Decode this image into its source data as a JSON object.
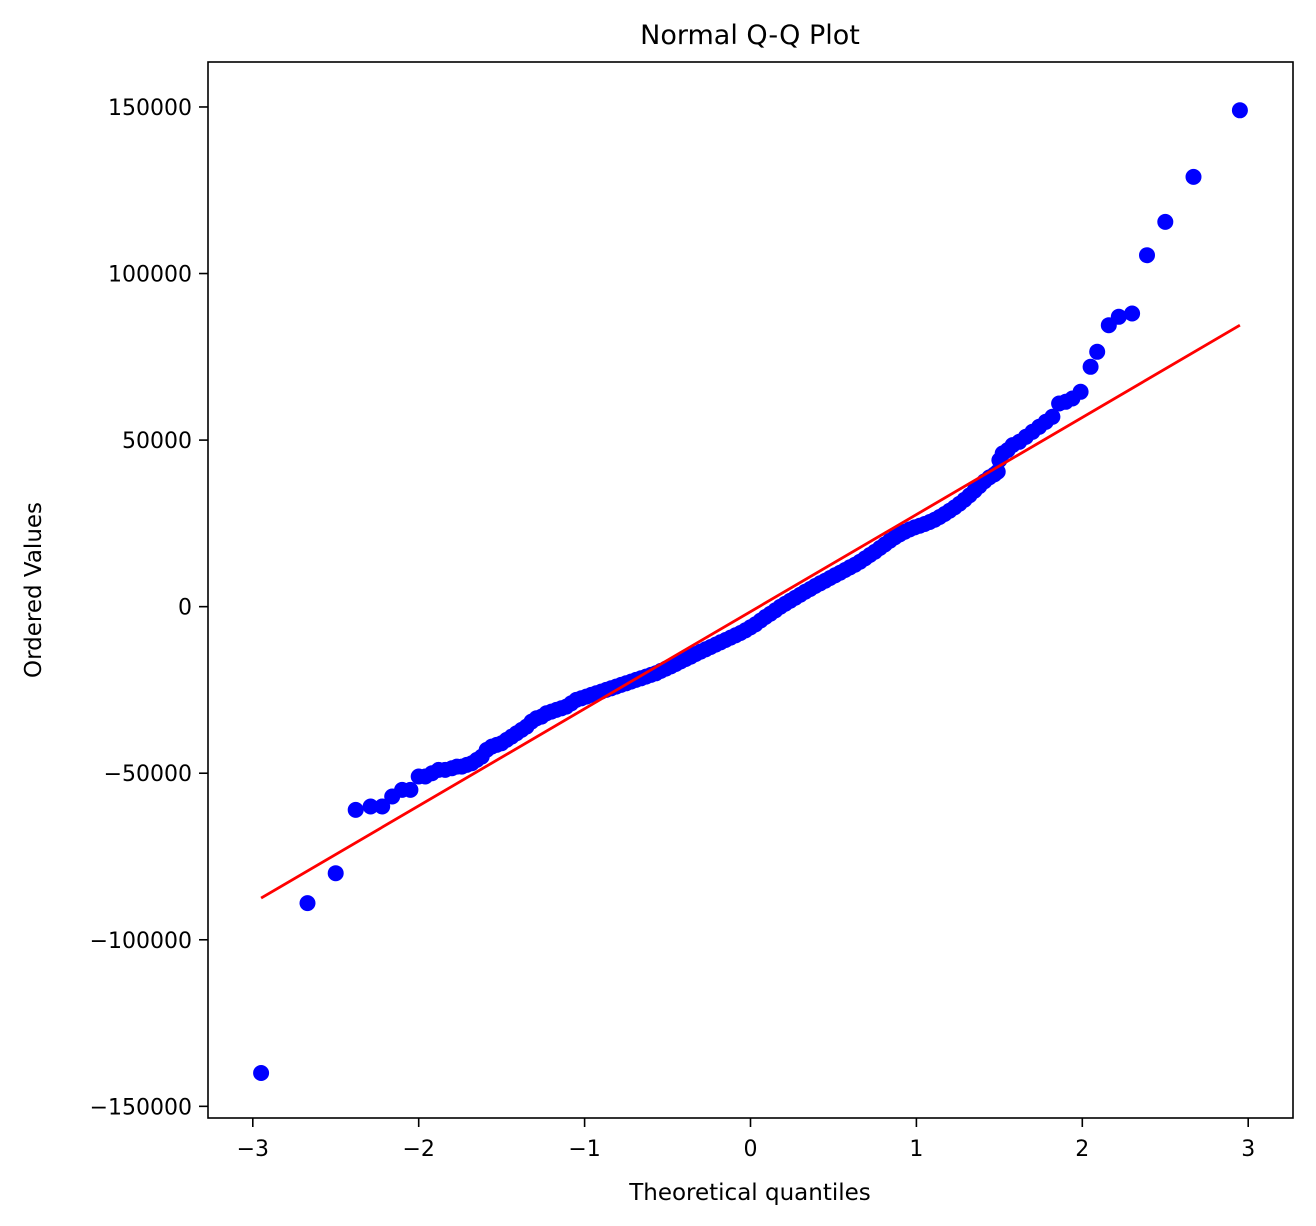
{
  "chart_data": {
    "type": "scatter",
    "title": "Normal Q-Q Plot",
    "xlabel": "Theoretical quantiles",
    "ylabel": "Ordered Values",
    "xlim": [
      -3.27,
      3.27
    ],
    "ylim": [
      -153500,
      163500
    ],
    "xticks": [
      {
        "value": -3,
        "label": "−3"
      },
      {
        "value": -2,
        "label": "−2"
      },
      {
        "value": -1,
        "label": "−1"
      },
      {
        "value": 0,
        "label": "0"
      },
      {
        "value": 1,
        "label": "1"
      },
      {
        "value": 2,
        "label": "2"
      },
      {
        "value": 3,
        "label": "3"
      }
    ],
    "yticks": [
      {
        "value": -150000,
        "label": "−150000"
      },
      {
        "value": -100000,
        "label": "−100000"
      },
      {
        "value": -50000,
        "label": "−50000"
      },
      {
        "value": 0,
        "label": "0"
      },
      {
        "value": 50000,
        "label": "50000"
      },
      {
        "value": 100000,
        "label": "100000"
      },
      {
        "value": 150000,
        "label": "150000"
      }
    ],
    "grid": false,
    "marker_color": "#0000ff",
    "fit_line_color": "#ff0000",
    "series": [
      {
        "kind": "points",
        "points": [
          [
            -2.95,
            -140000
          ],
          [
            -2.67,
            -89000
          ],
          [
            -2.5,
            -80000
          ],
          [
            -2.38,
            -61000
          ],
          [
            -2.29,
            -60000
          ],
          [
            -2.22,
            -60000
          ],
          [
            -2.16,
            -57000
          ],
          [
            -2.1,
            -55000
          ],
          [
            -2.05,
            -55000
          ],
          [
            -2.0,
            -51000
          ],
          [
            -1.96,
            -51000
          ],
          [
            -1.92,
            -50000
          ],
          [
            -1.88,
            -49000
          ],
          [
            -1.84,
            -49000
          ],
          [
            -1.8,
            -48500
          ],
          [
            -1.77,
            -48000
          ],
          [
            -1.74,
            -48000
          ],
          [
            -1.71,
            -47500
          ],
          [
            -1.68,
            -47000
          ],
          [
            -1.65,
            -46000
          ],
          [
            -1.62,
            -45000
          ],
          [
            -1.59,
            -43000
          ],
          [
            -1.56,
            -42000
          ],
          [
            -1.53,
            -41500
          ],
          [
            -1.5,
            -41000
          ],
          [
            -1.47,
            -40000
          ],
          [
            -1.44,
            -39000
          ],
          [
            -1.41,
            -38000
          ],
          [
            -1.38,
            -37000
          ],
          [
            -1.35,
            -36000
          ],
          [
            -1.32,
            -34500
          ],
          [
            -1.29,
            -33500
          ],
          [
            -1.26,
            -33000
          ],
          [
            -1.23,
            -32000
          ],
          [
            -1.2,
            -31500
          ],
          [
            -1.17,
            -31000
          ],
          [
            -1.14,
            -30500
          ],
          [
            -1.11,
            -30000
          ],
          [
            -1.08,
            -29000
          ],
          [
            -1.05,
            -28000
          ],
          [
            -1.02,
            -27500
          ],
          [
            -0.99,
            -27000
          ],
          [
            -0.96,
            -26500
          ],
          [
            -0.93,
            -26000
          ],
          [
            -0.9,
            -25500
          ],
          [
            -0.87,
            -25000
          ],
          [
            -0.84,
            -24500
          ],
          [
            -0.81,
            -24000
          ],
          [
            -0.78,
            -23500
          ],
          [
            -0.75,
            -23000
          ],
          [
            -0.72,
            -22500
          ],
          [
            -0.69,
            -22000
          ],
          [
            -0.66,
            -21500
          ],
          [
            -0.63,
            -21000
          ],
          [
            -0.6,
            -20500
          ],
          [
            -0.57,
            -20000
          ],
          [
            -0.54,
            -19300
          ],
          [
            -0.51,
            -18600
          ],
          [
            -0.48,
            -17900
          ],
          [
            -0.45,
            -17200
          ],
          [
            -0.42,
            -16400
          ],
          [
            -0.39,
            -15700
          ],
          [
            -0.36,
            -15000
          ],
          [
            -0.33,
            -14200
          ],
          [
            -0.3,
            -13500
          ],
          [
            -0.27,
            -12800
          ],
          [
            -0.24,
            -12100
          ],
          [
            -0.21,
            -11400
          ],
          [
            -0.18,
            -10700
          ],
          [
            -0.15,
            -10000
          ],
          [
            -0.12,
            -9300
          ],
          [
            -0.09,
            -8600
          ],
          [
            -0.06,
            -7900
          ],
          [
            -0.03,
            -7100
          ],
          [
            0.0,
            -6200
          ],
          [
            0.03,
            -5300
          ],
          [
            0.06,
            -4200
          ],
          [
            0.09,
            -3100
          ],
          [
            0.12,
            -2100
          ],
          [
            0.15,
            -1100
          ],
          [
            0.18,
            0
          ],
          [
            0.21,
            900
          ],
          [
            0.24,
            1800
          ],
          [
            0.27,
            2700
          ],
          [
            0.3,
            3600
          ],
          [
            0.33,
            4500
          ],
          [
            0.36,
            5300
          ],
          [
            0.39,
            6200
          ],
          [
            0.42,
            7000
          ],
          [
            0.45,
            7800
          ],
          [
            0.48,
            8600
          ],
          [
            0.51,
            9400
          ],
          [
            0.54,
            10200
          ],
          [
            0.57,
            11000
          ],
          [
            0.6,
            11800
          ],
          [
            0.63,
            12600
          ],
          [
            0.66,
            13500
          ],
          [
            0.69,
            14500
          ],
          [
            0.72,
            15500
          ],
          [
            0.75,
            16500
          ],
          [
            0.78,
            17600
          ],
          [
            0.81,
            18700
          ],
          [
            0.84,
            19800
          ],
          [
            0.87,
            20800
          ],
          [
            0.9,
            21700
          ],
          [
            0.93,
            22500
          ],
          [
            0.96,
            23200
          ],
          [
            0.99,
            23800
          ],
          [
            1.02,
            24300
          ],
          [
            1.05,
            24800
          ],
          [
            1.08,
            25400
          ],
          [
            1.11,
            26100
          ],
          [
            1.14,
            26900
          ],
          [
            1.17,
            27800
          ],
          [
            1.2,
            28800
          ],
          [
            1.23,
            29800
          ],
          [
            1.26,
            30900
          ],
          [
            1.29,
            32100
          ],
          [
            1.32,
            33400
          ],
          [
            1.35,
            34800
          ],
          [
            1.38,
            36200
          ],
          [
            1.41,
            37600
          ],
          [
            1.44,
            38800
          ],
          [
            1.47,
            39700
          ],
          [
            1.49,
            40500
          ],
          [
            1.5,
            44000
          ],
          [
            1.52,
            46000
          ],
          [
            1.55,
            47000
          ],
          [
            1.58,
            48500
          ],
          [
            1.62,
            49500
          ],
          [
            1.66,
            51000
          ],
          [
            1.7,
            52500
          ],
          [
            1.74,
            54000
          ],
          [
            1.78,
            55500
          ],
          [
            1.82,
            57000
          ],
          [
            1.86,
            61000
          ],
          [
            1.9,
            61500
          ],
          [
            1.94,
            62500
          ],
          [
            1.99,
            64500
          ],
          [
            2.05,
            72000
          ],
          [
            2.09,
            76500
          ],
          [
            2.16,
            84500
          ],
          [
            2.22,
            87000
          ],
          [
            2.3,
            88000
          ],
          [
            2.39,
            105500
          ],
          [
            2.5,
            115500
          ],
          [
            2.67,
            129000
          ],
          [
            2.95,
            149000
          ]
        ]
      },
      {
        "kind": "fit_line",
        "points": [
          [
            -2.95,
            -87500
          ],
          [
            2.95,
            84500
          ]
        ]
      }
    ]
  }
}
